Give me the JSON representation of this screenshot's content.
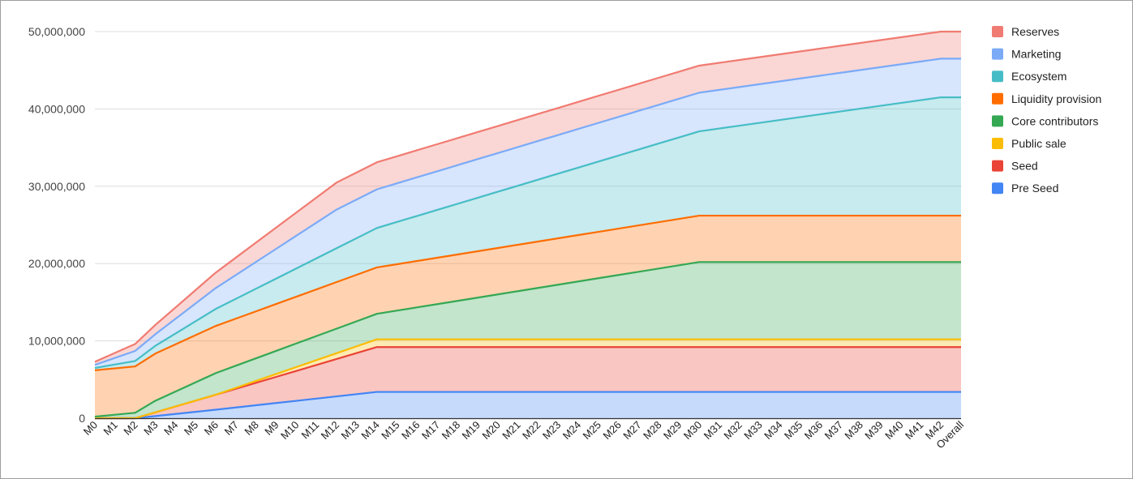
{
  "chart_data": {
    "type": "area",
    "stacked": true,
    "title": "",
    "xlabel": "",
    "ylabel": "",
    "ylim": [
      0,
      50000000
    ],
    "yticks": [
      0,
      10000000,
      20000000,
      30000000,
      40000000,
      50000000
    ],
    "ytick_labels": [
      "0",
      "10,000,000",
      "20,000,000",
      "30,000,000",
      "40,000,000",
      "50,000,000"
    ],
    "grid": true,
    "legend_position": "right",
    "categories": [
      "M0",
      "M1",
      "M2",
      "M3",
      "M4",
      "M5",
      "M6",
      "M7",
      "M8",
      "M9",
      "M10",
      "M11",
      "M12",
      "M13",
      "M14",
      "M15",
      "M16",
      "M17",
      "M18",
      "M19",
      "M20",
      "M21",
      "M22",
      "M23",
      "M24",
      "M25",
      "M26",
      "M27",
      "M28",
      "M29",
      "M30",
      "M31",
      "M32",
      "M33",
      "M34",
      "M35",
      "M36",
      "M37",
      "M38",
      "M39",
      "M40",
      "M41",
      "M42",
      "Overall"
    ],
    "series": [
      {
        "name": "Pre Seed",
        "color": "#4285F4",
        "knots": [
          [
            0,
            0
          ],
          [
            2,
            0
          ],
          [
            6,
            1100000
          ],
          [
            14,
            3400000
          ],
          [
            43,
            3400000
          ]
        ]
      },
      {
        "name": "Seed",
        "color": "#EA4335",
        "knots": [
          [
            0,
            0
          ],
          [
            2,
            0
          ],
          [
            14,
            5800000
          ],
          [
            43,
            5800000
          ]
        ]
      },
      {
        "name": "Public sale",
        "color": "#FBBC04",
        "knots": [
          [
            0,
            0
          ],
          [
            2,
            0
          ],
          [
            6,
            0
          ],
          [
            14,
            1000000
          ],
          [
            43,
            1000000
          ]
        ]
      },
      {
        "name": "Core contributors",
        "color": "#34A853",
        "knots": [
          [
            0,
            200000
          ],
          [
            2,
            700000
          ],
          [
            3,
            1500000
          ],
          [
            6,
            2800000
          ],
          [
            14,
            3300000
          ],
          [
            30,
            10000000
          ],
          [
            43,
            10000000
          ]
        ]
      },
      {
        "name": "Liquidity provision",
        "color": "#FF6D01",
        "knots": [
          [
            0,
            6000000
          ],
          [
            2,
            6000000
          ],
          [
            3,
            6100000
          ],
          [
            6,
            6100000
          ],
          [
            14,
            6000000
          ],
          [
            30,
            6000000
          ],
          [
            43,
            6000000
          ]
        ]
      },
      {
        "name": "Ecosystem",
        "color": "#46BDC6",
        "knots": [
          [
            0,
            300000
          ],
          [
            2,
            700000
          ],
          [
            3,
            1000000
          ],
          [
            6,
            2200000
          ],
          [
            14,
            5100000
          ],
          [
            30,
            10900000
          ],
          [
            42,
            15300000
          ],
          [
            43,
            15300000
          ]
        ]
      },
      {
        "name": "Marketing",
        "color": "#7BAAF7",
        "knots": [
          [
            0,
            400000
          ],
          [
            2,
            1300000
          ],
          [
            3,
            1500000
          ],
          [
            6,
            2700000
          ],
          [
            12,
            5000000
          ],
          [
            14,
            5000000
          ],
          [
            30,
            5000000
          ],
          [
            42,
            5000000
          ],
          [
            43,
            5000000
          ]
        ]
      },
      {
        "name": "Reserves",
        "color": "#F07B72",
        "knots": [
          [
            0,
            400000
          ],
          [
            2,
            900000
          ],
          [
            3,
            1200000
          ],
          [
            6,
            2000000
          ],
          [
            12,
            3500000
          ],
          [
            14,
            3500000
          ],
          [
            30,
            3500000
          ],
          [
            42,
            3500000
          ],
          [
            43,
            3500000
          ]
        ]
      }
    ]
  }
}
